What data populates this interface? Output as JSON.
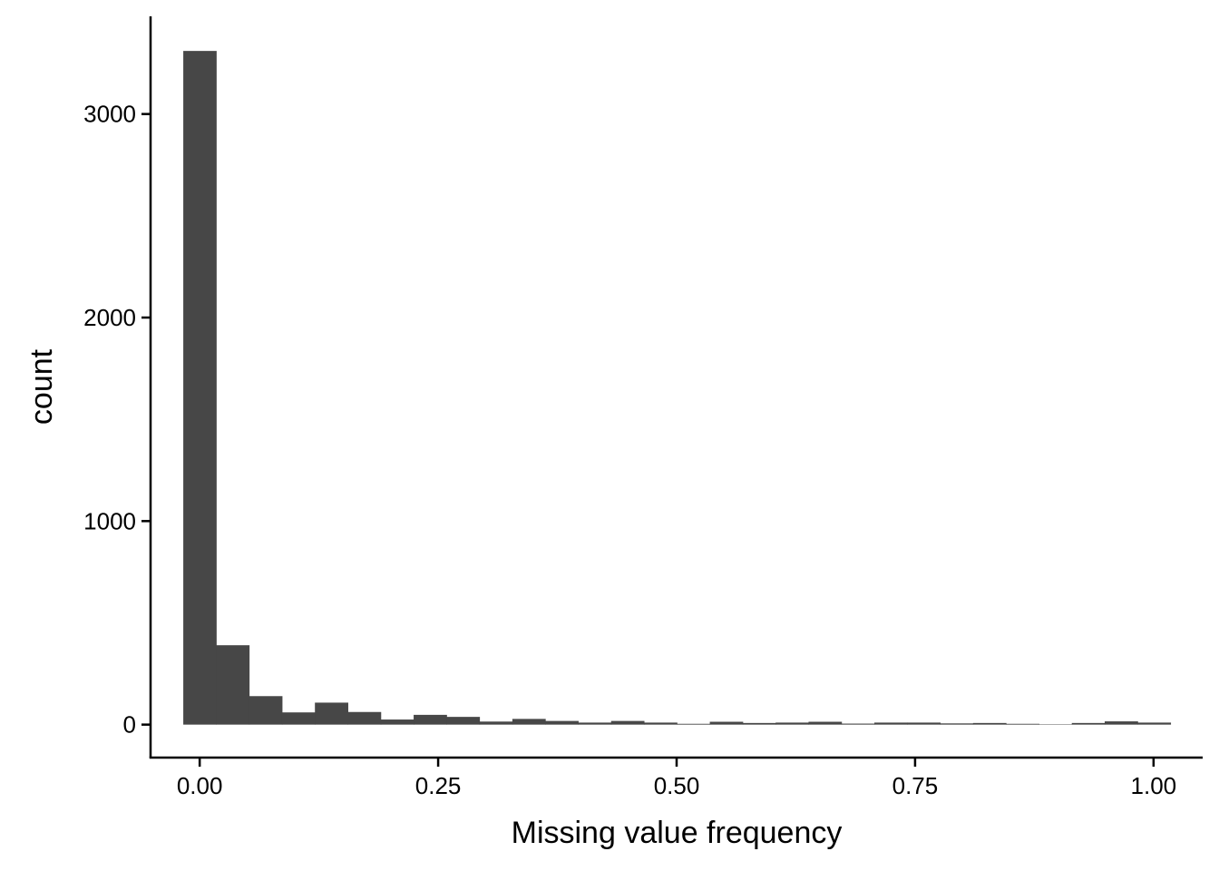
{
  "chart_data": {
    "type": "bar",
    "title": "",
    "xlabel": "Missing value frequency",
    "ylabel": "count",
    "xlim": [
      -0.0515,
      1.0515
    ],
    "ylim": [
      -162,
      3480
    ],
    "x_ticks": [
      {
        "value": 0.0,
        "label": "0.00"
      },
      {
        "value": 0.25,
        "label": "0.25"
      },
      {
        "value": 0.5,
        "label": "0.50"
      },
      {
        "value": 0.75,
        "label": "0.75"
      },
      {
        "value": 1.0,
        "label": "1.00"
      }
    ],
    "y_ticks": [
      {
        "value": 0,
        "label": "0"
      },
      {
        "value": 1000,
        "label": "1000"
      },
      {
        "value": 2000,
        "label": "2000"
      },
      {
        "value": 3000,
        "label": "3000"
      }
    ],
    "grid": false,
    "bar_color": "#474747",
    "bins": {
      "start": -0.0172,
      "width": 0.0345,
      "counts": [
        3310,
        390,
        140,
        60,
        108,
        62,
        25,
        48,
        38,
        15,
        28,
        18,
        10,
        18,
        10,
        4,
        14,
        8,
        10,
        14,
        5,
        10,
        10,
        6,
        8,
        4,
        2,
        8,
        16,
        10
      ]
    }
  }
}
